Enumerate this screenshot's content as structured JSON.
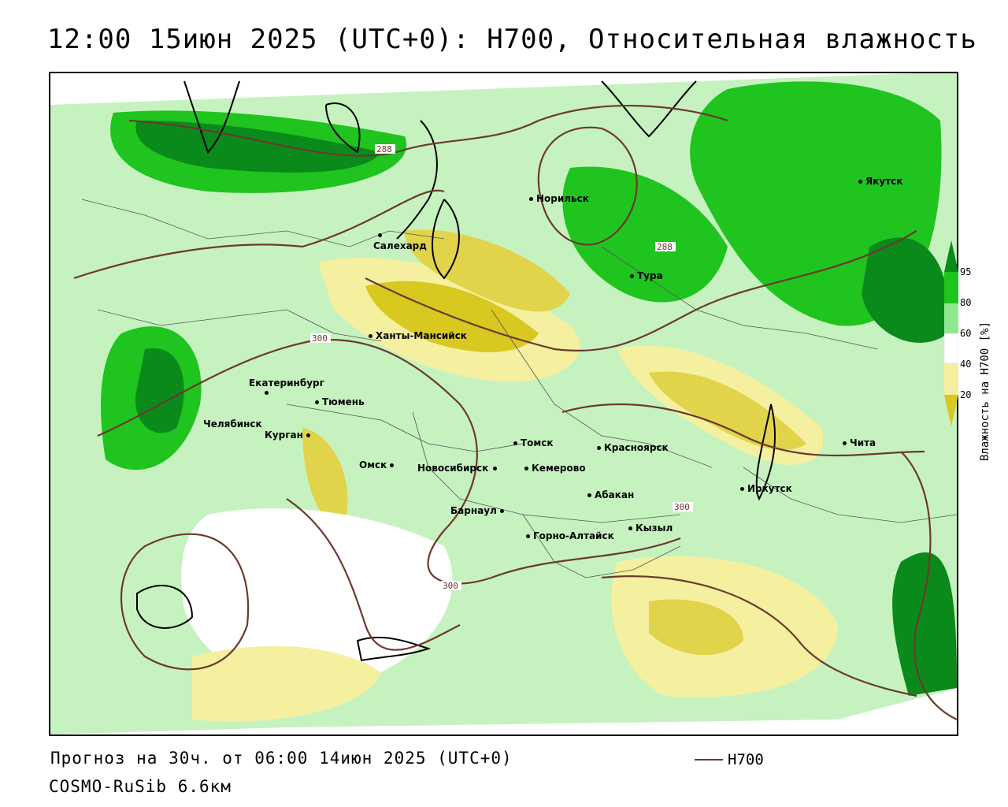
{
  "title": "12:00 15июн 2025 (UTC+0): H700, Относительная влажность",
  "footer": {
    "forecast": "Прогноз на 30ч. от 06:00 14июн 2025 (UTC+0)",
    "model": "COSMO-RuSib 6.6км",
    "legend_line_label": "H700"
  },
  "colorbar": {
    "title": "Влажность на H700 [%]",
    "ticks": [
      "95",
      "80",
      "60",
      "40",
      "20"
    ],
    "colors": {
      "c95": "#0a8a1a",
      "c80": "#1fc41f",
      "c60": "#8fe88f",
      "c40": "#ffffff",
      "c20": "#f4f0a0",
      "c0": "#d8c820"
    }
  },
  "contour_labels": [
    "288",
    "288",
    "300",
    "300",
    "300"
  ],
  "cities": [
    {
      "name": "Норильск"
    },
    {
      "name": "Якутск"
    },
    {
      "name": "Салехард"
    },
    {
      "name": "Тура"
    },
    {
      "name": "Ханты-Мансийск"
    },
    {
      "name": "Екатеринбург"
    },
    {
      "name": "Тюмень"
    },
    {
      "name": "Челябинск"
    },
    {
      "name": "Курган"
    },
    {
      "name": "Омск"
    },
    {
      "name": "Томск"
    },
    {
      "name": "Красноярск"
    },
    {
      "name": "Новосибирск"
    },
    {
      "name": "Кемерово"
    },
    {
      "name": "Абакан"
    },
    {
      "name": "Барнаул"
    },
    {
      "name": "Кызыл"
    },
    {
      "name": "Горно-Алтайск"
    },
    {
      "name": "Иркутск"
    },
    {
      "name": "Чита"
    }
  ],
  "colors": {
    "contour": "#6b3a2e",
    "border": "#000000"
  }
}
